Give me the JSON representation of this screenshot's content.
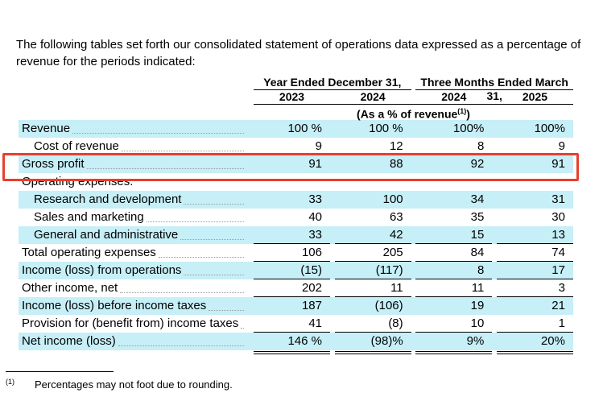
{
  "intro": "The following tables set forth our consolidated statement of operations data expressed as a percentage of revenue for the periods indicated:",
  "colors": {
    "row_highlight": "#c6eff7",
    "annotation_red": "#e8402c"
  },
  "table": {
    "col_groups": [
      {
        "label": "Year Ended December 31,",
        "years": [
          "2023",
          "2024"
        ]
      },
      {
        "label": "Three Months Ended March 31,",
        "years": [
          "2024",
          "2025"
        ]
      }
    ],
    "subheader": {
      "prefix": "(As a % of revenue",
      "sup": "(1)",
      "suffix": ")"
    },
    "rows": [
      {
        "label": "Revenue",
        "indent": false,
        "leaders": true,
        "highlight": true,
        "values": [
          "100 %",
          "100 %",
          "100%",
          "100%"
        ]
      },
      {
        "label": "Cost of revenue",
        "indent": true,
        "leaders": true,
        "highlight": false,
        "rule_below": true,
        "values": [
          "9",
          "12",
          "8",
          "9"
        ]
      },
      {
        "label": "Gross profit",
        "indent": false,
        "leaders": true,
        "highlight": true,
        "annotated": true,
        "values": [
          "91",
          "88",
          "92",
          "91"
        ]
      },
      {
        "label": "Operating expenses:",
        "indent": false,
        "leaders": false,
        "highlight": false,
        "values": [
          "",
          "",
          "",
          ""
        ]
      },
      {
        "label": "Research and development",
        "indent": true,
        "leaders": true,
        "highlight": true,
        "values": [
          "33",
          "100",
          "34",
          "31"
        ]
      },
      {
        "label": "Sales and marketing",
        "indent": true,
        "leaders": true,
        "highlight": false,
        "values": [
          "40",
          "63",
          "35",
          "30"
        ]
      },
      {
        "label": "General and administrative",
        "indent": true,
        "leaders": true,
        "highlight": true,
        "rule_below": true,
        "values": [
          "33",
          "42",
          "15",
          "13"
        ]
      },
      {
        "label": "Total operating expenses",
        "indent": false,
        "leaders": true,
        "highlight": false,
        "rule_below": true,
        "values": [
          "106",
          "205",
          "84",
          "74"
        ]
      },
      {
        "label": "Income (loss) from operations",
        "indent": false,
        "leaders": true,
        "highlight": true,
        "rule_below": true,
        "values": [
          "(15)",
          "(117)",
          "8",
          "17"
        ]
      },
      {
        "label": "Other income, net",
        "indent": false,
        "leaders": true,
        "highlight": false,
        "rule_below": true,
        "values": [
          "202",
          "11",
          "11",
          "3"
        ]
      },
      {
        "label": "Income (loss) before income taxes",
        "indent": false,
        "leaders": true,
        "highlight": true,
        "values": [
          "187",
          "(106)",
          "19",
          "21"
        ]
      },
      {
        "label": "Provision for (benefit from) income taxes",
        "indent": false,
        "leaders": true,
        "highlight": false,
        "rule_below": true,
        "values": [
          "41",
          "(8)",
          "10",
          "1"
        ]
      },
      {
        "label": "Net income (loss)",
        "indent": false,
        "leaders": true,
        "highlight": true,
        "double_rule_below": true,
        "values": [
          "146 %",
          "(98)%",
          "9%",
          "20%"
        ]
      }
    ]
  },
  "footnote": {
    "sup": "(1)",
    "text": "Percentages may not foot due to rounding."
  }
}
